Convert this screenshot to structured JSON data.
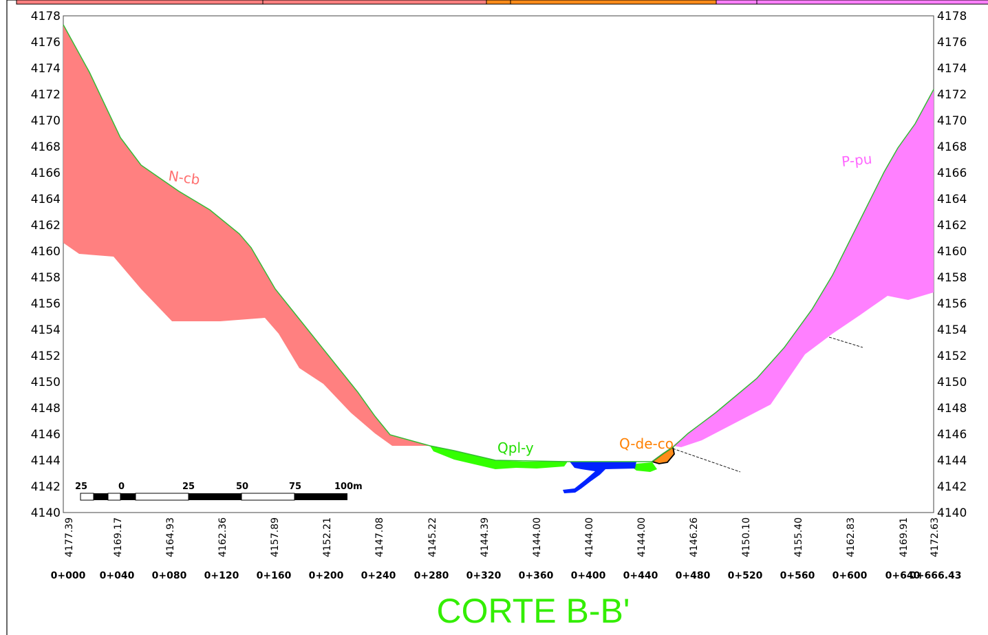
{
  "title": "CORTE B-B'",
  "colors": {
    "ncb": "#ff8080",
    "ppu": "#ff80ff",
    "qply": "#33ff00",
    "qdeco": "#ff8c1a",
    "water": "#0022ff",
    "title": "#33ee00",
    "topline": "#33bb33"
  },
  "top_strip": {
    "colors": [
      "#ff8080",
      "#ff8080",
      "#ff8c1a",
      "#ff80ff"
    ]
  },
  "y_axis": {
    "ticks": [
      "4178",
      "4176",
      "4174",
      "4172",
      "4170",
      "4168",
      "4166",
      "4164",
      "4162",
      "4160",
      "4158",
      "4156",
      "4154",
      "4152",
      "4150",
      "4148",
      "4146",
      "4144",
      "4142",
      "4140"
    ]
  },
  "elevations": [
    "4177.39",
    "4169.17",
    "4164.93",
    "4162.36",
    "4157.89",
    "4152.21",
    "4147.08",
    "4145.22",
    "4144.39",
    "4144.00",
    "4144.00",
    "4144.00",
    "4146.26",
    "4150.10",
    "4155.40",
    "4162.83",
    "4169.91",
    "4172.63"
  ],
  "stations": [
    "0+000",
    "0+040",
    "0+080",
    "0+120",
    "0+160",
    "0+200",
    "0+240",
    "0+280",
    "0+320",
    "0+360",
    "0+400",
    "0+440",
    "0+480",
    "0+520",
    "0+560",
    "0+600",
    "0+640",
    "0+666.43"
  ],
  "units": [
    {
      "label": "N-cb",
      "color": "#ff8080"
    },
    {
      "label": "P-pu",
      "color": "#ff80ff"
    },
    {
      "label": "Qpl-y",
      "color": "#33ee00"
    },
    {
      "label": "Q-de-co",
      "color": "#ff8c1a"
    }
  ],
  "scale_bar": {
    "labels": [
      "25",
      "0",
      "25",
      "50",
      "75",
      "100m"
    ]
  }
}
